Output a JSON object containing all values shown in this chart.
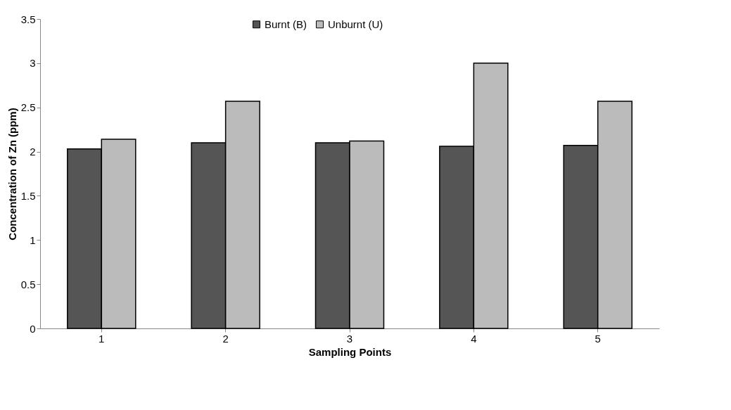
{
  "chart_data": {
    "type": "bar",
    "xlabel": "Sampling Points",
    "ylabel": "Concentration of Zn (ppm)",
    "categories": [
      "1",
      "2",
      "3",
      "4",
      "5"
    ],
    "series": [
      {
        "name": "Burnt (B)",
        "color": "#555555",
        "values": [
          2.03,
          2.1,
          2.1,
          2.06,
          2.07
        ]
      },
      {
        "name": "Unburnt (U)",
        "color": "#bbbbbb",
        "values": [
          2.14,
          2.57,
          2.12,
          3.0,
          2.57
        ]
      }
    ],
    "ylim": [
      0,
      3.5
    ],
    "yticks": [
      0,
      0.5,
      1,
      1.5,
      2,
      2.5,
      3,
      3.5
    ],
    "grid": false,
    "legend": "top"
  }
}
